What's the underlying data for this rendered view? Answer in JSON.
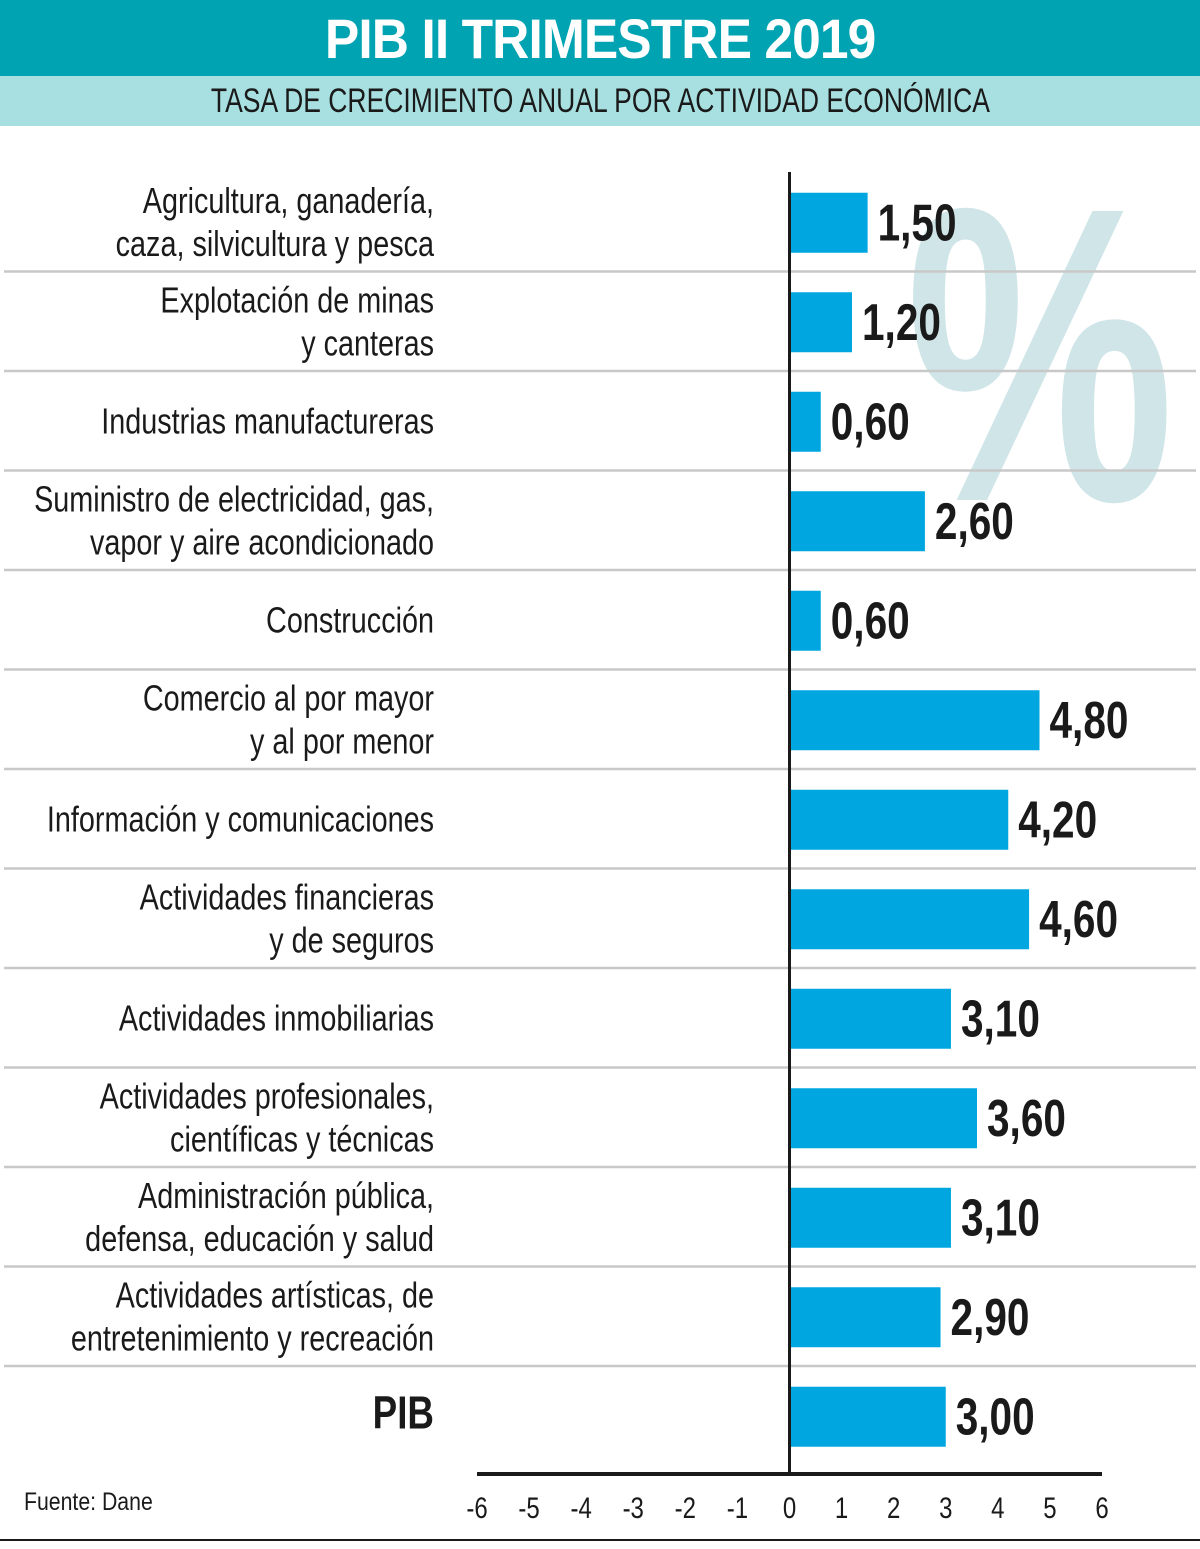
{
  "header": {
    "title": "PIB II TRIMESTRE 2019",
    "subtitle": "TASA DE CRECIMIENTO ANUAL POR ACTIVIDAD ECONÓMICA"
  },
  "source": "Fuente: Dane",
  "watermark": "%",
  "colors": {
    "title_bg": "#00a3b2",
    "subtitle_bg": "#a8dfe0",
    "bar": "#00a6e0",
    "watermark": "#cfe5e8",
    "separator": "#c8c8c8"
  },
  "chart_data": {
    "type": "bar",
    "orientation": "horizontal",
    "title": "PIB II TRIMESTRE 2019",
    "subtitle": "TASA DE CRECIMIENTO ANUAL POR ACTIVIDAD ECONÓMICA",
    "categories": [
      [
        "Agricultura, ganadería,",
        "caza, silvicultura y pesca"
      ],
      [
        "Explotación de minas",
        "y canteras"
      ],
      [
        "Industrias manufactureras"
      ],
      [
        "Suministro de electricidad, gas,",
        "vapor y aire acondicionado"
      ],
      [
        "Construcción"
      ],
      [
        "Comercio al por mayor",
        "y al por menor"
      ],
      [
        "Información y comunicaciones"
      ],
      [
        "Actividades financieras",
        "y de seguros"
      ],
      [
        "Actividades inmobiliarias"
      ],
      [
        "Actividades profesionales,",
        "científicas y técnicas"
      ],
      [
        "Administración pública,",
        "defensa, educación y salud"
      ],
      [
        "Actividades artísticas, de",
        "entretenimiento y recreación"
      ],
      [
        "PIB"
      ]
    ],
    "values": [
      1.5,
      1.2,
      0.6,
      2.6,
      0.6,
      4.8,
      4.2,
      4.6,
      3.1,
      3.6,
      3.1,
      2.9,
      3.0
    ],
    "value_labels": [
      "1,50",
      "1,20",
      "0,60",
      "2,60",
      "0,60",
      "4,80",
      "4,20",
      "4,60",
      "3,10",
      "3,60",
      "3,10",
      "2,90",
      "3,00"
    ],
    "xlim": [
      -6,
      6
    ],
    "xticks": [
      "-6",
      "-5",
      "-4",
      "-3",
      "-2",
      "-1",
      "0",
      "1",
      "2",
      "3",
      "4",
      "5",
      "6"
    ],
    "xlabel": "",
    "ylabel": "",
    "grid": false
  }
}
